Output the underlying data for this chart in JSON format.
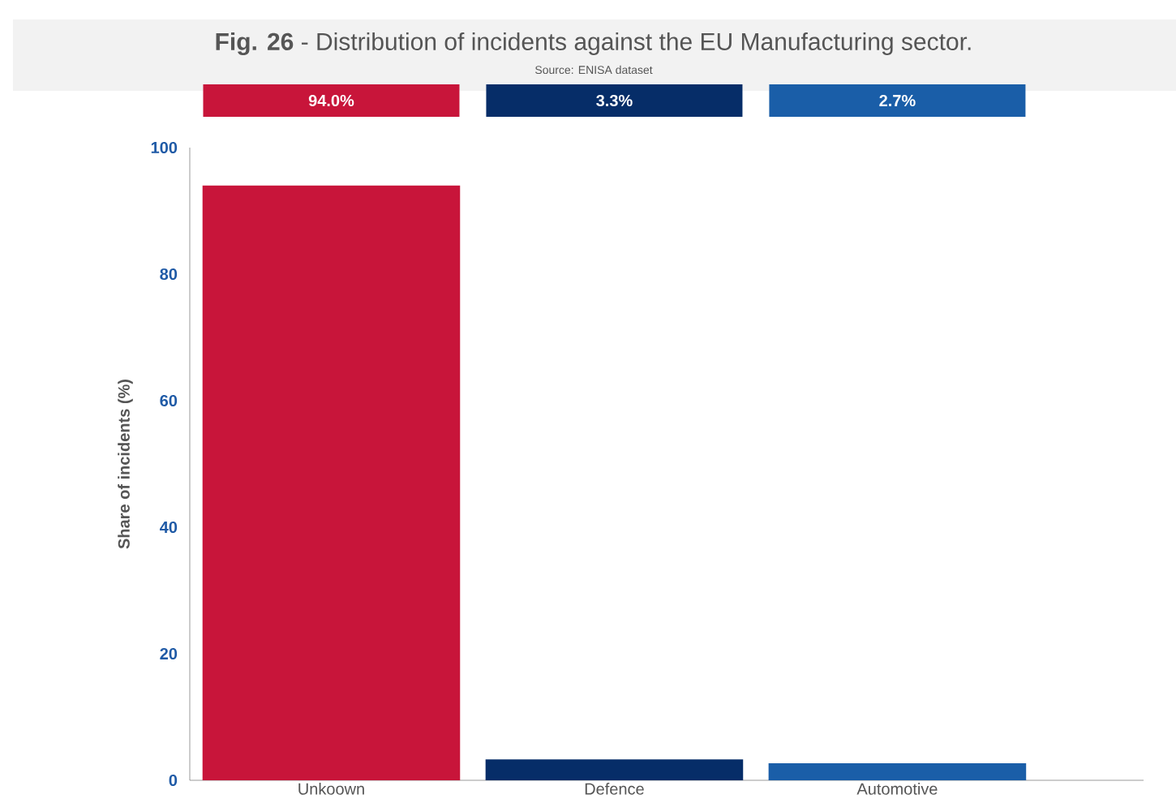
{
  "chart_data": {
    "type": "bar",
    "title": "**Fig. 26** - Distribution of incidents against the EU Manufacturing sector.",
    "subtitle": "Source: ENISA dataset",
    "ylabel": "Share of incidents (%)",
    "categories": [
      "Unkoown",
      "Defence",
      "Automotive"
    ],
    "values": [
      94.0,
      3.3,
      2.7
    ],
    "colors": [
      "#c8153a",
      "#062d68",
      "#1a5ea8"
    ],
    "value_labels": [
      "94.0%",
      "3.3%",
      "2.7%"
    ],
    "ylim": [
      0,
      100
    ],
    "yticks": [
      0,
      20,
      40,
      60,
      80,
      100
    ]
  }
}
